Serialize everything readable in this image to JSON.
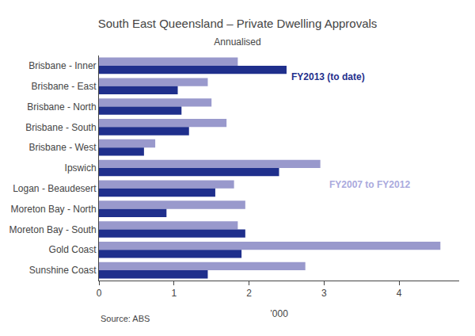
{
  "chart_data": {
    "type": "bar",
    "orientation": "horizontal",
    "title": "South East Queensland – Private Dwelling Approvals",
    "subtitle": "Annualised",
    "source": "Source: ABS",
    "xlabel": "’000",
    "categories": [
      "Brisbane - Inner",
      "Brisbane - East",
      "Brisbane - North",
      "Brisbane - South",
      "Brisbane - West",
      "Ipswich",
      "Logan - Beaudesert",
      "Moreton Bay - North",
      "Moreton Bay - South",
      "Gold Coast",
      "Sunshine Coast"
    ],
    "series": [
      {
        "name": "FY2007 to FY2012",
        "color": "#9999cc",
        "values": [
          1.85,
          1.45,
          1.5,
          1.7,
          0.75,
          2.95,
          1.8,
          1.95,
          1.85,
          4.55,
          2.75
        ]
      },
      {
        "name": "FY2013 (to date)",
        "color": "#1f2f8c",
        "values": [
          2.5,
          1.05,
          1.1,
          1.2,
          0.6,
          2.4,
          1.55,
          0.9,
          1.95,
          1.9,
          1.45
        ]
      }
    ],
    "annotations": [
      {
        "text": "FY2013 (to date)",
        "color": "#1f2f8c"
      },
      {
        "text": "FY2007 to FY2012",
        "color": "#aaaadd"
      }
    ],
    "xlim": [
      0,
      4.8
    ],
    "xticks": [
      0,
      1,
      2,
      3,
      4
    ],
    "grid": false
  }
}
